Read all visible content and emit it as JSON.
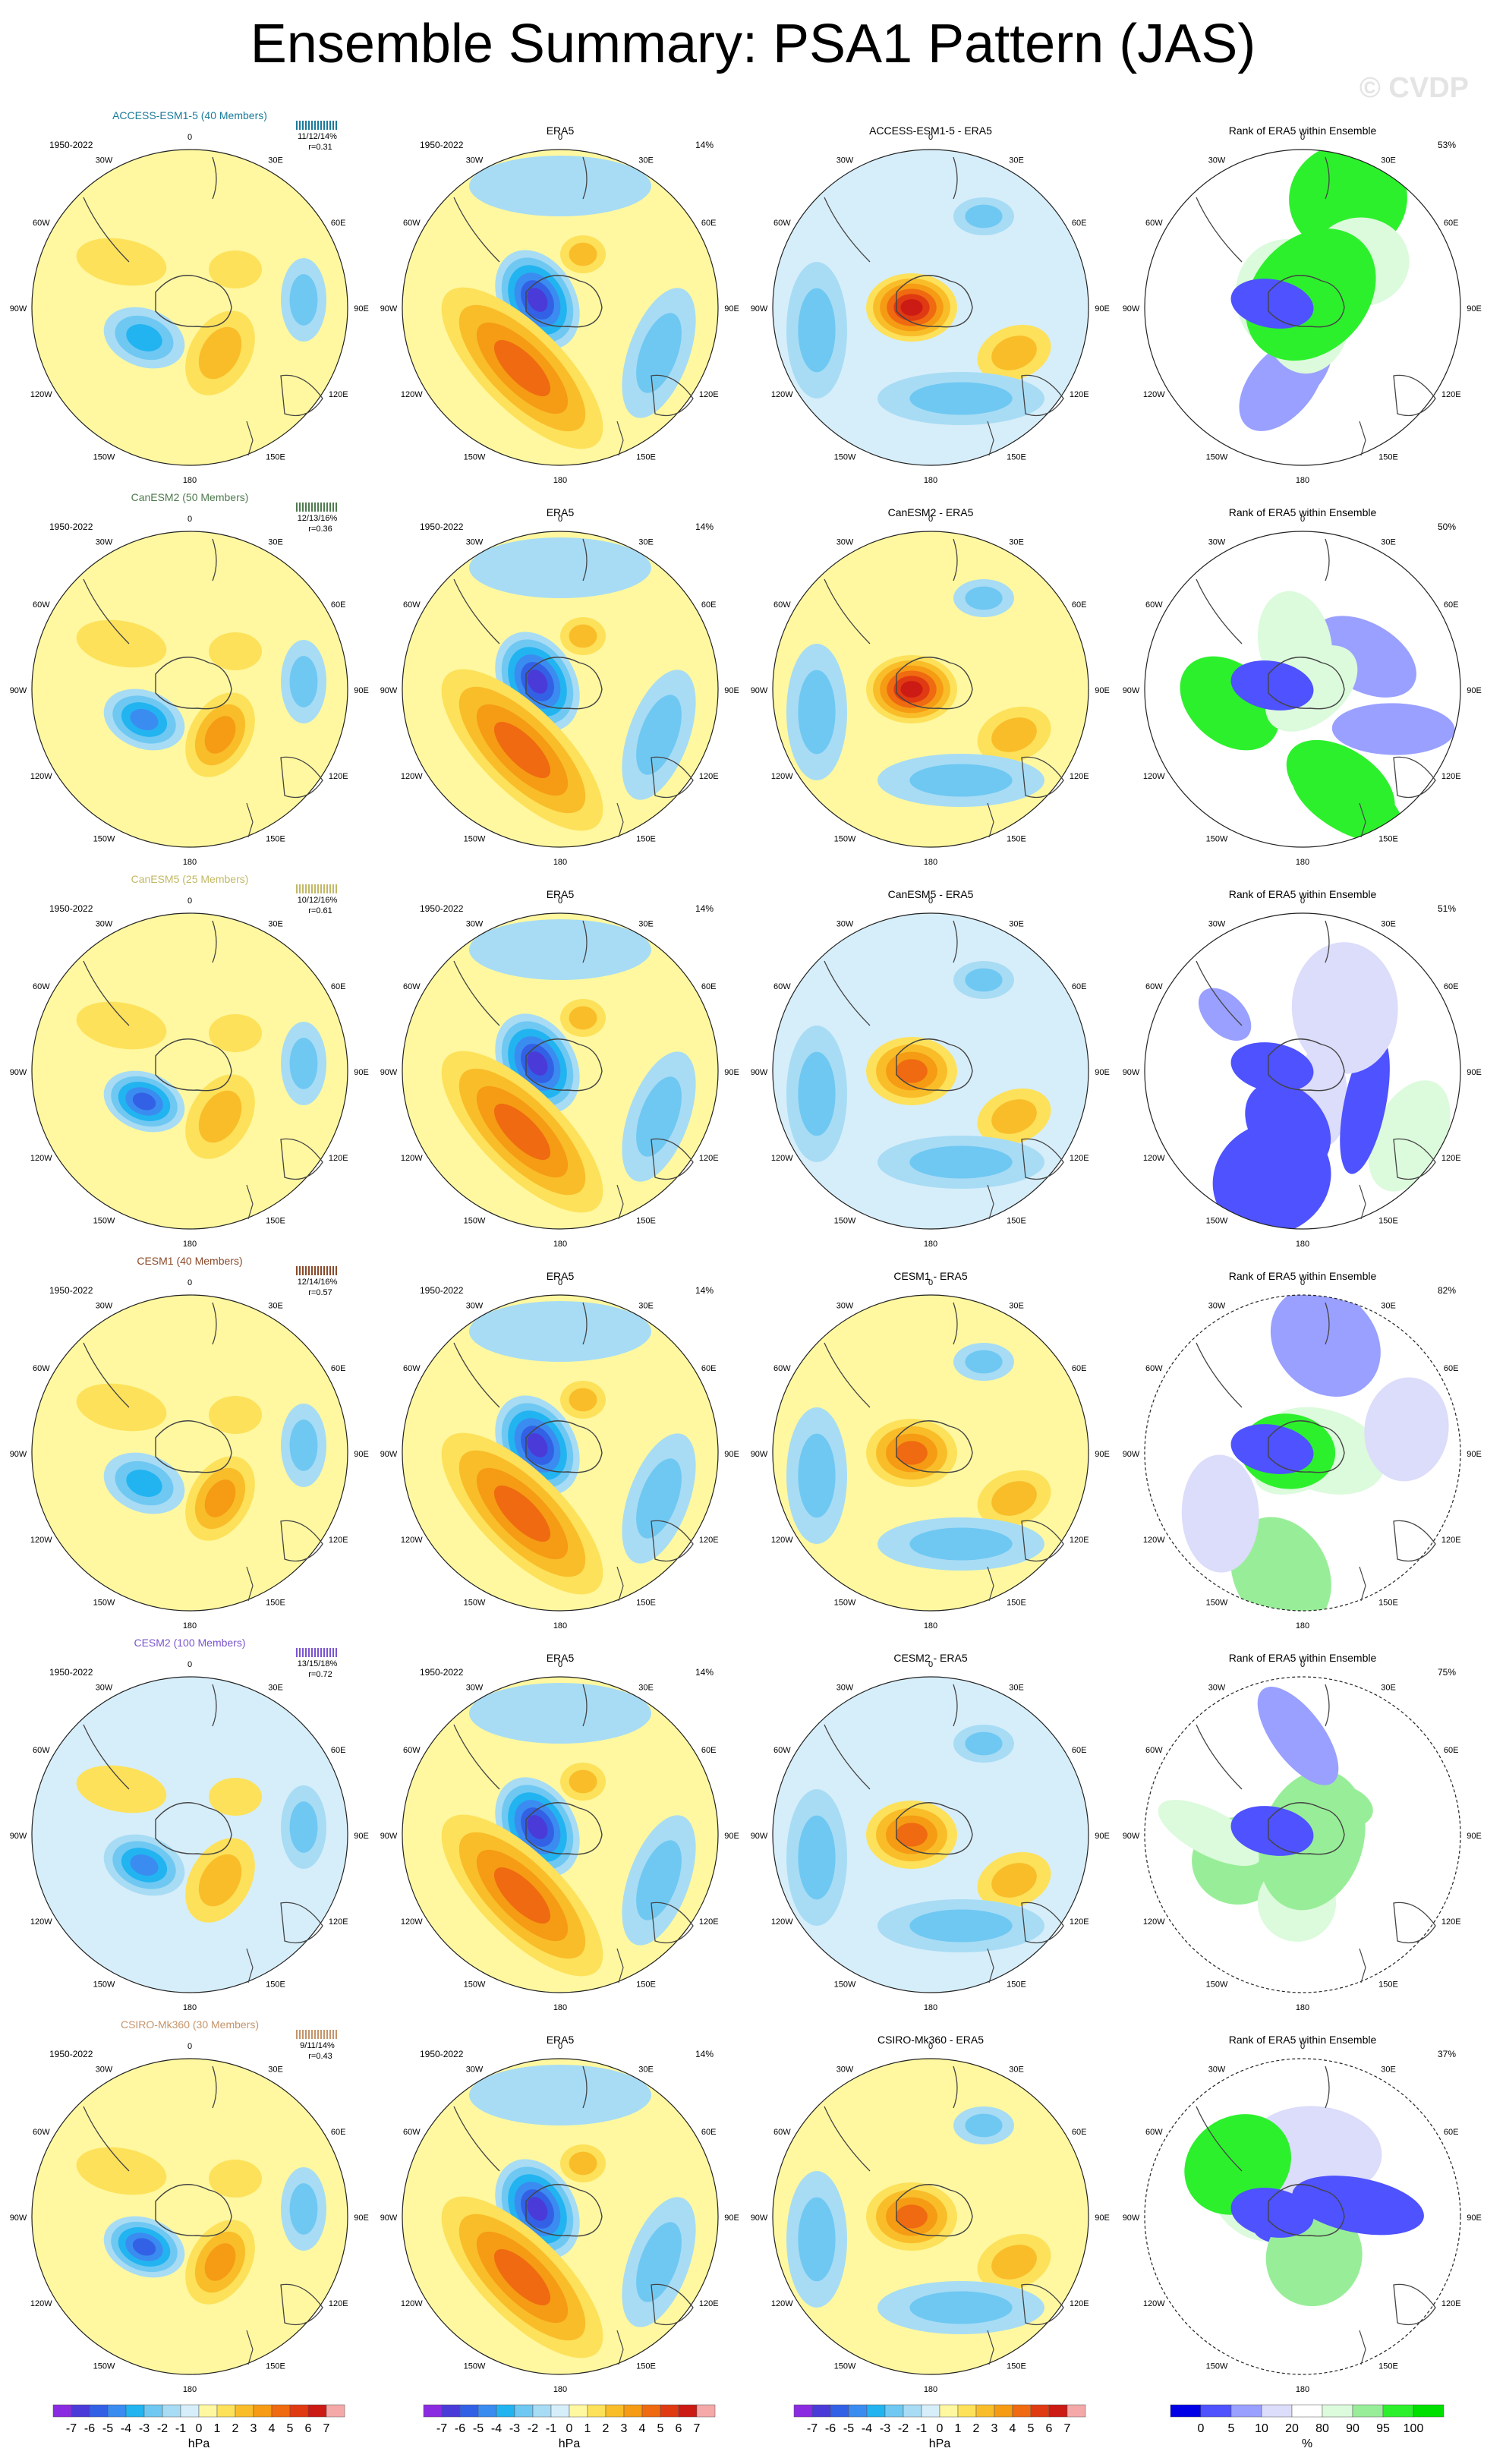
{
  "title": "Ensemble Summary: PSA1 Pattern (JAS)",
  "watermark": "© CVDP",
  "period": "1950-2022",
  "obs_name": "ERA5",
  "rank_title": "Rank of ERA5 within Ensemble",
  "lon_labels": [
    "0",
    "30E",
    "60E",
    "90E",
    "120E",
    "150E",
    "180",
    "150W",
    "120W",
    "90W",
    "60W",
    "30W"
  ],
  "colorbar_hpa": {
    "labels": [
      "-7",
      "-6",
      "-5",
      "-4",
      "-3",
      "-2",
      "-1",
      "0",
      "1",
      "2",
      "3",
      "4",
      "5",
      "6",
      "7"
    ],
    "colors": [
      "#8a2be2",
      "#4a3bd9",
      "#3261e6",
      "#3b8cf0",
      "#22b4f0",
      "#6fc8f2",
      "#a8dcf4",
      "#d6eefa",
      "#fff8a0",
      "#fde15a",
      "#f9bd2a",
      "#f59b14",
      "#ef6a10",
      "#e03a12",
      "#cc1a14",
      "#f4a9a8"
    ],
    "unit": "hPa"
  },
  "colorbar_rank": {
    "labels": [
      "0",
      "5",
      "10",
      "20",
      "80",
      "90",
      "95",
      "100"
    ],
    "colors": [
      "#0000e6",
      "#4e52ff",
      "#9aa0ff",
      "#dcdcfb",
      "#ffffff",
      "#dcfadc",
      "#98ee98",
      "#2df02d",
      "#00e000"
    ],
    "unit": "%"
  },
  "chart_data": [
    {
      "type": "heatmap",
      "row": 1,
      "model": "ACCESS-ESM1-5",
      "members": 40,
      "title": "ACCESS-ESM1-5 (40 Members)",
      "color": "#1a7a9a",
      "spread": "11/12/14%",
      "r": "r=0.31",
      "obs_pct": "14%",
      "diff_title": "ACCESS-ESM1-5 - ERA5",
      "rank_pct": "53%"
    },
    {
      "type": "heatmap",
      "row": 2,
      "model": "CanESM2",
      "members": 50,
      "title": "CanESM2 (50 Members)",
      "color": "#4f7a4f",
      "spread": "12/13/16%",
      "r": "r=0.36",
      "obs_pct": "14%",
      "diff_title": "CanESM2 - ERA5",
      "rank_pct": "50%"
    },
    {
      "type": "heatmap",
      "row": 3,
      "model": "CanESM5",
      "members": 25,
      "title": "CanESM5 (25 Members)",
      "color": "#c2b866",
      "spread": "10/12/16%",
      "r": "r=0.61",
      "obs_pct": "14%",
      "diff_title": "CanESM5 - ERA5",
      "rank_pct": "51%"
    },
    {
      "type": "heatmap",
      "row": 4,
      "model": "CESM1",
      "members": 40,
      "title": "CESM1 (40 Members)",
      "color": "#8a4a2a",
      "spread": "12/14/16%",
      "r": "r=0.57",
      "obs_pct": "14%",
      "diff_title": "CESM1 - ERA5",
      "rank_pct": "82%"
    },
    {
      "type": "heatmap",
      "row": 5,
      "model": "CESM2",
      "members": 100,
      "title": "CESM2 (100 Members)",
      "color": "#7b55d0",
      "spread": "13/15/18%",
      "r": "r=0.72",
      "obs_pct": "14%",
      "diff_title": "CESM2 - ERA5",
      "rank_pct": "75%"
    },
    {
      "type": "heatmap",
      "row": 6,
      "model": "CSIRO-Mk360",
      "members": 30,
      "title": "CSIRO-Mk360 (30 Members)",
      "color": "#c4946a",
      "spread": "9/11/14%",
      "r": "r=0.43",
      "obs_pct": "14%",
      "diff_title": "CSIRO-Mk360 - ERA5",
      "rank_pct": "37%"
    }
  ]
}
